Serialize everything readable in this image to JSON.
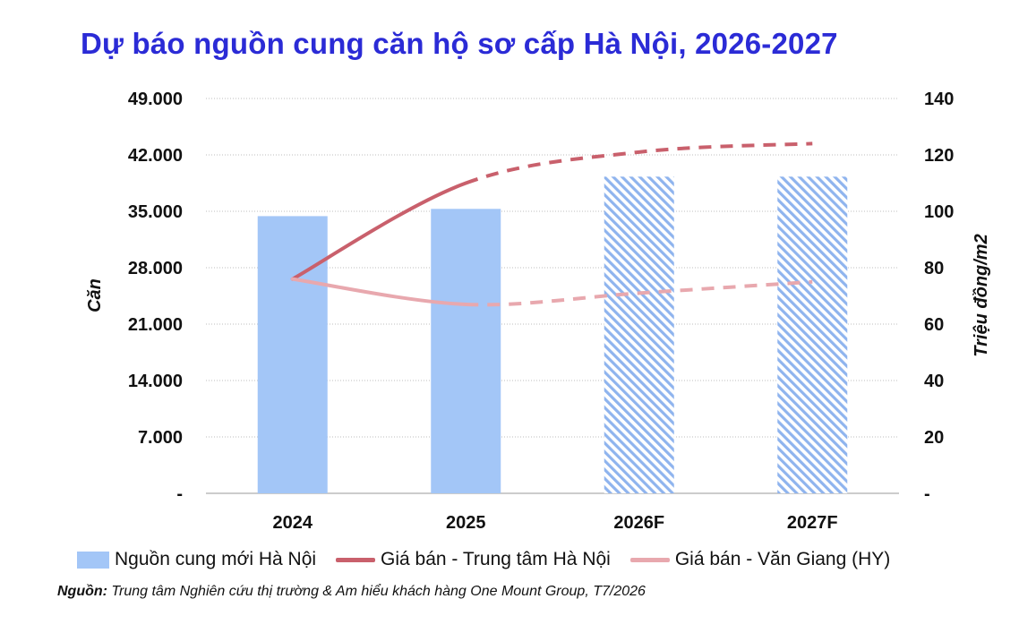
{
  "title": "Dự báo nguồn cung căn hộ sơ cấp Hà Nội, 2026-2027",
  "colors": {
    "title": "#2b2bd6",
    "bar": "#a3c6f7",
    "bar_hatch": "#7fa9ea",
    "line_center": "#c9606c",
    "line_vangiang": "#e8a8ae",
    "grid": "#bdbdbd"
  },
  "chart_data": {
    "type": "bar",
    "categories": [
      "2024",
      "2025",
      "2026F",
      "2027F"
    ],
    "forecast_categories": [
      "2026F",
      "2027F"
    ],
    "y_left": {
      "label": "Căn",
      "range": [
        0,
        49000
      ],
      "ticks": [
        "-",
        "7.000",
        "14.000",
        "21.000",
        "28.000",
        "35.000",
        "42.000",
        "49.000"
      ],
      "tick_values": [
        0,
        7000,
        14000,
        21000,
        28000,
        35000,
        42000,
        49000
      ]
    },
    "y_right": {
      "label": "Triệu đồng/m2",
      "range": [
        0,
        140
      ],
      "ticks": [
        "-",
        "20",
        "40",
        "60",
        "80",
        "100",
        "120",
        "140"
      ],
      "tick_values": [
        0,
        20,
        40,
        60,
        80,
        100,
        120,
        140
      ]
    },
    "grid": true,
    "legend_position": "bottom",
    "series": [
      {
        "name": "Nguồn cung mới Hà Nội",
        "type": "bar",
        "axis": "left",
        "values": [
          34400,
          35300,
          39300,
          39300
        ]
      },
      {
        "name": "Giá bán - Trung tâm Hà Nội",
        "type": "line",
        "axis": "right",
        "values": [
          76,
          110,
          121,
          124
        ]
      },
      {
        "name": "Giá bán - Văn Giang (HY)",
        "type": "line",
        "axis": "right",
        "values": [
          76,
          67,
          71,
          75
        ]
      }
    ]
  },
  "source": {
    "label": "Nguồn:",
    "text": " Trung tâm Nghiên cứu thị trường & Am hiểu khách hàng One Mount Group, T7/2026"
  }
}
